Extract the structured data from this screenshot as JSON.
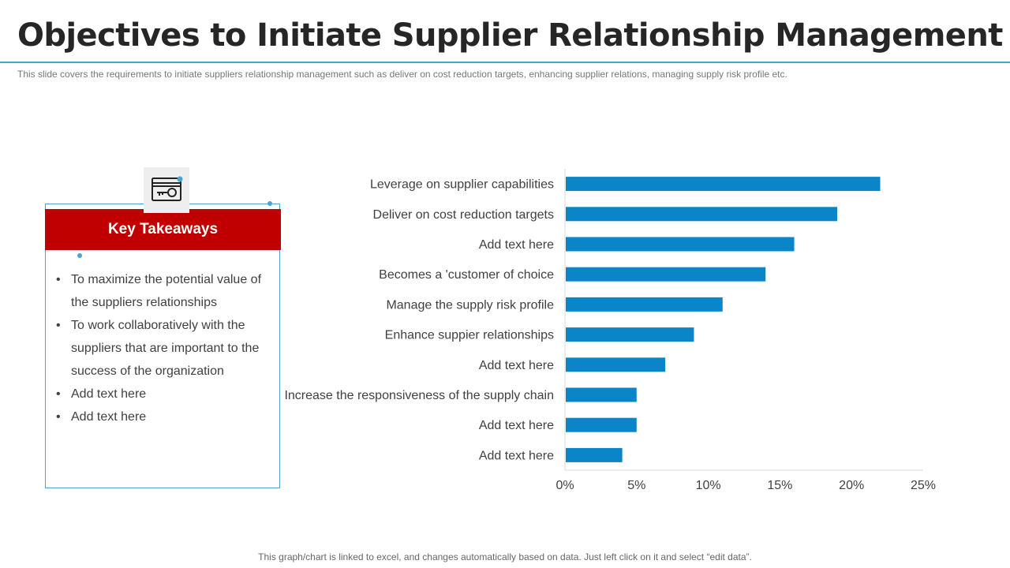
{
  "title": "Objectives to Initiate Supplier Relationship Management",
  "subtitle": "This slide covers the requirements to initiate suppliers relationship management such as deliver on cost reduction targets, enhancing supplier relations, managing supply risk profile etc.",
  "key_takeaways": {
    "heading": "Key Takeaways",
    "icon": "credit-card-key-icon",
    "items": [
      "To maximize the potential value of the suppliers relationships",
      "To work collaboratively with the suppliers that are important to the success of the organization",
      "Add text here",
      "Add text here"
    ]
  },
  "footnote": "This graph/chart is linked to excel, and changes automatically based on data. Just left click on it and select “edit data”.",
  "colors": {
    "bar": "#0a86c8",
    "accent": "#4aa3d1",
    "header": "#c00000"
  },
  "chart_data": {
    "type": "bar",
    "orientation": "horizontal",
    "categories": [
      "Leverage on supplier capabilities",
      "Deliver on cost reduction targets",
      "Add text here",
      "Becomes a 'customer of choice",
      "Manage the supply risk profile",
      "Enhance suppier relationships",
      "Add text here",
      "Increase the responsiveness of the supply chain",
      "Add text here",
      "Add text here"
    ],
    "values": [
      22,
      19,
      16,
      14,
      11,
      9,
      7,
      5,
      5,
      4
    ],
    "xlim": [
      0,
      25
    ],
    "xticks": [
      0,
      5,
      10,
      15,
      20,
      25
    ],
    "tick_format": "percent",
    "grid": false,
    "legend": "none"
  }
}
